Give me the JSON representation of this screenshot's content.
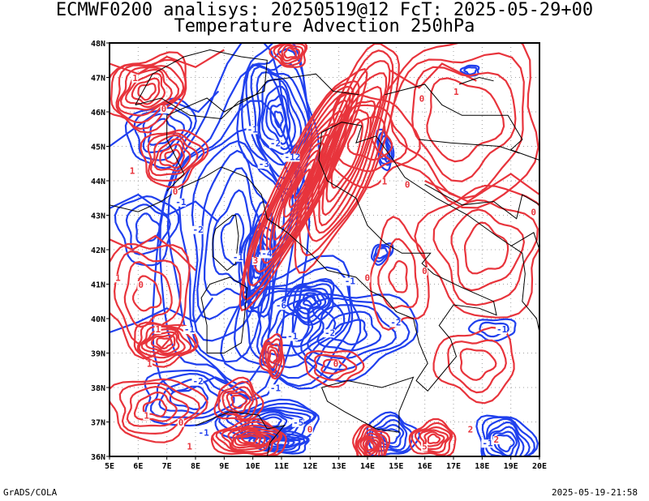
{
  "title_line1": "ECMWF0200 analisys: 20250519@12 FcT: 2025-05-29+00",
  "title_line2": "Temperature Advection 250hPa",
  "footer_left": "GrADS/COLA",
  "footer_right": "2025-05-19-21:58",
  "map": {
    "lon_labels": [
      "5E",
      "6E",
      "7E",
      "8E",
      "9E",
      "10E",
      "11E",
      "12E",
      "13E",
      "14E",
      "15E",
      "16E",
      "17E",
      "18E",
      "19E",
      "20E"
    ],
    "lat_labels": [
      "48N",
      "47N",
      "46N",
      "45N",
      "44N",
      "43N",
      "42N",
      "41N",
      "40N",
      "39N",
      "38N",
      "37N",
      "36N"
    ],
    "lon_range": [
      5,
      20
    ],
    "lat_range": [
      36,
      48
    ],
    "grid": "dotted",
    "colors": {
      "warm_advection": "#e8343c",
      "cold_advection": "#2040ee",
      "coastline": "#000000",
      "grid": "#a0a0a0"
    },
    "contour_labels": [
      {
        "text": "1",
        "lon": 5.8,
        "lat": 46.9,
        "color": "warm"
      },
      {
        "text": "0",
        "lon": 6.8,
        "lat": 46.0,
        "color": "warm"
      },
      {
        "text": "1",
        "lon": 5.7,
        "lat": 44.2,
        "color": "warm"
      },
      {
        "text": "0",
        "lon": 7.2,
        "lat": 43.6,
        "color": "warm"
      },
      {
        "text": "-1",
        "lon": 7.3,
        "lat": 43.3,
        "color": "cold"
      },
      {
        "text": "-2",
        "lon": 7.9,
        "lat": 42.5,
        "color": "cold"
      },
      {
        "text": "1",
        "lon": 5.2,
        "lat": 41.1,
        "color": "warm"
      },
      {
        "text": "0",
        "lon": 6.0,
        "lat": 40.9,
        "color": "warm"
      },
      {
        "text": "1",
        "lon": 6.6,
        "lat": 39.6,
        "color": "warm"
      },
      {
        "text": "-1",
        "lon": 7.6,
        "lat": 39.6,
        "color": "cold"
      },
      {
        "text": "1",
        "lon": 6.3,
        "lat": 38.6,
        "color": "warm"
      },
      {
        "text": "-2",
        "lon": 7.9,
        "lat": 38.1,
        "color": "cold"
      },
      {
        "text": "1",
        "lon": 6.2,
        "lat": 37.1,
        "color": "warm"
      },
      {
        "text": "0",
        "lon": 7.4,
        "lat": 36.9,
        "color": "warm"
      },
      {
        "text": "-1",
        "lon": 8.1,
        "lat": 36.6,
        "color": "cold"
      },
      {
        "text": "1",
        "lon": 7.7,
        "lat": 36.2,
        "color": "warm"
      },
      {
        "text": "-1",
        "lon": 9.8,
        "lat": 45.4,
        "color": "cold"
      },
      {
        "text": "-2",
        "lon": 10.6,
        "lat": 45.0,
        "color": "cold"
      },
      {
        "text": "-12",
        "lon": 11.1,
        "lat": 44.6,
        "color": "cold"
      },
      {
        "text": "-3",
        "lon": 10.2,
        "lat": 44.4,
        "color": "cold"
      },
      {
        "text": "-1",
        "lon": 9.3,
        "lat": 41.7,
        "color": "cold"
      },
      {
        "text": "3",
        "lon": 10.0,
        "lat": 41.6,
        "color": "warm"
      },
      {
        "text": "-1",
        "lon": 13.2,
        "lat": 41.0,
        "color": "cold"
      },
      {
        "text": "0",
        "lon": 13.9,
        "lat": 41.1,
        "color": "warm"
      },
      {
        "text": "-2",
        "lon": 14.8,
        "lat": 39.8,
        "color": "cold"
      },
      {
        "text": "-2",
        "lon": 12.5,
        "lat": 39.5,
        "color": "cold"
      },
      {
        "text": "0",
        "lon": 12.8,
        "lat": 38.6,
        "color": "warm"
      },
      {
        "text": "1",
        "lon": 14.5,
        "lat": 43.9,
        "color": "warm"
      },
      {
        "text": "0",
        "lon": 15.3,
        "lat": 43.8,
        "color": "warm"
      },
      {
        "text": "1",
        "lon": 17.0,
        "lat": 46.5,
        "color": "warm"
      },
      {
        "text": "0",
        "lon": 15.8,
        "lat": 46.3,
        "color": "warm"
      },
      {
        "text": "0",
        "lon": 15.9,
        "lat": 41.3,
        "color": "warm"
      },
      {
        "text": "-1",
        "lon": 18.5,
        "lat": 39.6,
        "color": "cold"
      },
      {
        "text": "0",
        "lon": 19.7,
        "lat": 43.0,
        "color": "warm"
      },
      {
        "text": "5",
        "lon": 15.9,
        "lat": 36.2,
        "color": "warm"
      },
      {
        "text": "2",
        "lon": 17.5,
        "lat": 36.7,
        "color": "warm"
      },
      {
        "text": "-1",
        "lon": 18.0,
        "lat": 36.3,
        "color": "cold"
      },
      {
        "text": "2",
        "lon": 18.4,
        "lat": 36.4,
        "color": "warm"
      },
      {
        "text": "-1",
        "lon": 11.2,
        "lat": 39.4,
        "color": "cold"
      },
      {
        "text": "-6",
        "lon": 10.8,
        "lat": 40.3,
        "color": "cold"
      },
      {
        "text": "-4",
        "lon": 10.3,
        "lat": 41.8,
        "color": "cold"
      },
      {
        "text": "-1",
        "lon": 10.6,
        "lat": 37.9,
        "color": "cold"
      },
      {
        "text": "0",
        "lon": 11.9,
        "lat": 36.7,
        "color": "warm"
      },
      {
        "text": "-5",
        "lon": 11.4,
        "lat": 36.9,
        "color": "cold"
      }
    ]
  }
}
